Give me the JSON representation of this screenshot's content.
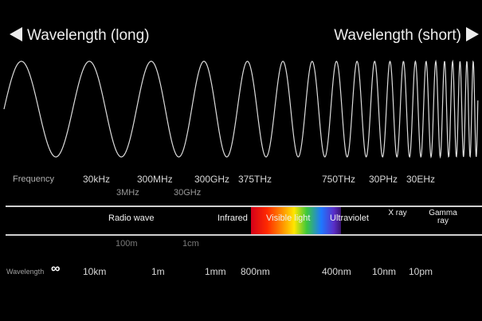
{
  "header": {
    "left": "Wavelength (long)",
    "right": "Wavelength (short)"
  },
  "frequency": {
    "label": "Frequency",
    "row1": [
      "30kHz",
      "300MHz",
      "300GHz",
      "375THz",
      "750THz",
      "30PHz",
      "30EHz"
    ],
    "row2": [
      "3MHz",
      "30GHz"
    ]
  },
  "bands": {
    "radio": "Radio wave",
    "infrared": "Infrared",
    "visible": "Visible light",
    "ultraviolet": "Ultraviolet",
    "xray": "X ray",
    "gamma": "Gamma ray"
  },
  "wavelength": {
    "label": "Wavelength",
    "infinity": "∞",
    "row1": [
      "100m",
      "1cm"
    ],
    "row2": [
      "10km",
      "1m",
      "1mm",
      "800nm",
      "400nm",
      "10nm",
      "10pm"
    ]
  }
}
